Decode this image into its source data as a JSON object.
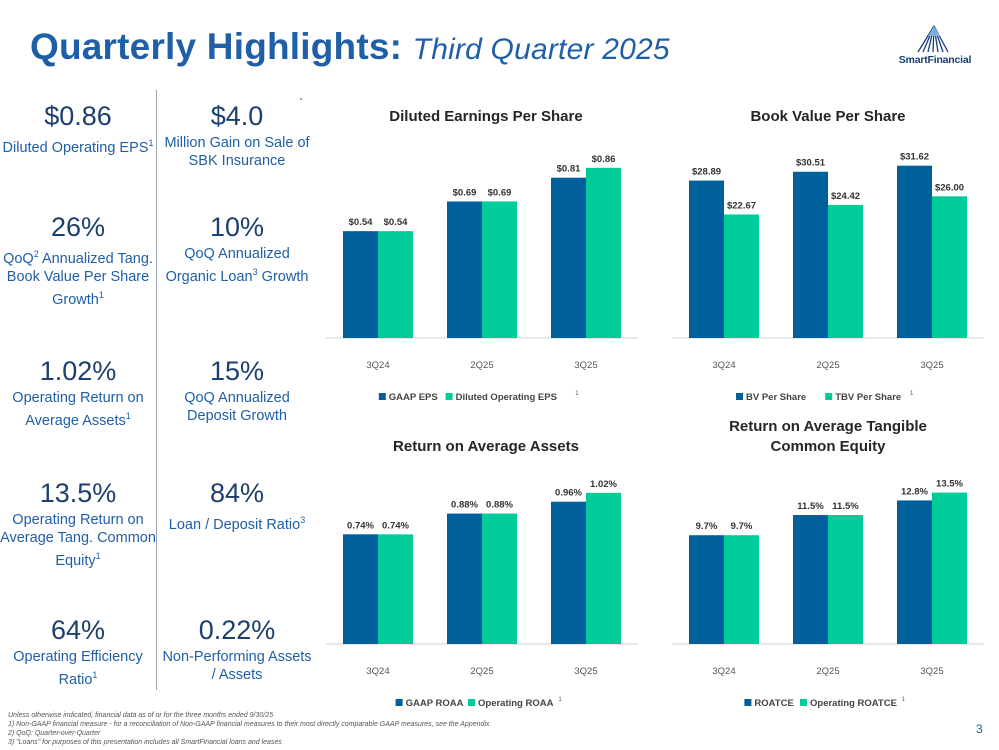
{
  "header": {
    "title_main": "Quarterly Highlights:",
    "title_sub": "Third Quarter 2025",
    "logo_text": "SmartFinancial",
    "page_number": "3"
  },
  "kpis_left": [
    {
      "value": "$0.86",
      "label": "Diluted Operating EPS",
      "note": "1"
    },
    {
      "value": "26%",
      "label": "QoQ Annualized Tang. Book Value Per Share Growth",
      "note": "1",
      "label_prefix": "QoQ",
      "label_prefix_note": "2",
      "label_rest": "Annualized Tang. Book Value Per Share Growth"
    },
    {
      "value": "1.02%",
      "label": "Operating Return on Average Assets",
      "note": "1"
    },
    {
      "value": "13.5%",
      "label": "Operating Return on Average Tang. Common Equity",
      "note": "1"
    },
    {
      "value": "64%",
      "label": "Operating Efficiency Ratio",
      "note": "1"
    }
  ],
  "kpis_right": [
    {
      "value": "$4.0",
      "label": "Million Gain on Sale of SBK Insurance",
      "note": ""
    },
    {
      "value": "10%",
      "label": "QoQ Annualized Organic Loan",
      "note": "3",
      "label_end": "Growth"
    },
    {
      "value": "15%",
      "label": "QoQ Annualized Deposit Growth",
      "note": ""
    },
    {
      "value": "84%",
      "label": "Loan / Deposit Ratio",
      "note": "3"
    },
    {
      "value": "0.22%",
      "label": "Non-Performing Assets / Assets",
      "note": ""
    }
  ],
  "colors": {
    "series1": "#00609c",
    "series2": "#00cc99",
    "brand": "#1f5fa8"
  },
  "chart_data": [
    {
      "type": "bar",
      "title": "Diluted Earnings Per Share",
      "categories": [
        "3Q24",
        "2Q25",
        "3Q25"
      ],
      "series": [
        {
          "name": "GAAP EPS",
          "values": [
            0.54,
            0.69,
            0.81
          ],
          "labels": [
            "$0.54",
            "$0.69",
            "$0.81"
          ]
        },
        {
          "name": "Diluted Operating EPS",
          "values": [
            0.54,
            0.69,
            0.86
          ],
          "labels": [
            "$0.54",
            "$0.69",
            "$0.86"
          ],
          "note": "1"
        }
      ],
      "ylim": [
        0,
        0.95
      ]
    },
    {
      "type": "bar",
      "title": "Book Value Per Share",
      "categories": [
        "3Q24",
        "2Q25",
        "3Q25"
      ],
      "series": [
        {
          "name": "BV Per Share",
          "values": [
            28.89,
            30.51,
            31.62
          ],
          "labels": [
            "$28.89",
            "$30.51",
            "$31.62"
          ]
        },
        {
          "name": "TBV Per Share",
          "values": [
            22.67,
            24.42,
            26.0
          ],
          "labels": [
            "$22.67",
            "$24.42",
            "$26.00"
          ],
          "note": "1"
        }
      ],
      "ylim": [
        0,
        34.5
      ]
    },
    {
      "type": "bar",
      "title": "Return on Average Assets",
      "categories": [
        "3Q24",
        "2Q25",
        "3Q25"
      ],
      "series": [
        {
          "name": "GAAP ROAA",
          "values": [
            0.74,
            0.88,
            0.96
          ],
          "labels": [
            "0.74%",
            "0.88%",
            "0.96%"
          ]
        },
        {
          "name": "Operating ROAA",
          "values": [
            0.74,
            0.88,
            1.02
          ],
          "labels": [
            "0.74%",
            "0.88%",
            "1.02%"
          ],
          "note": "1"
        }
      ],
      "ylim": [
        0,
        1.12
      ]
    },
    {
      "type": "bar",
      "title": "Return on Average Tangible Common Equity",
      "categories": [
        "3Q24",
        "2Q25",
        "3Q25"
      ],
      "series": [
        {
          "name": "ROATCE",
          "values": [
            9.7,
            11.5,
            12.8
          ],
          "labels": [
            "9.7%",
            "11.5%",
            "12.8%"
          ]
        },
        {
          "name": "Operating ROATCE",
          "values": [
            9.7,
            11.5,
            13.5
          ],
          "labels": [
            "9.7%",
            "11.5%",
            "13.5%"
          ],
          "note": "1"
        }
      ],
      "ylim": [
        0,
        14.8
      ]
    }
  ],
  "footnotes": [
    "Unless otherwise indicated, financial data as of or for the three months ended 9/30/25",
    "1)   Non-GAAP financial measure - for a reconciliation of Non-GAAP financial measures to their most directly comparable GAAP measures, see the Appendix",
    "2)   QoQ: Quarter-over-Quarter",
    "3)   \"Loans\" for purposes of this presentation includes all SmartFinancial loans and leases"
  ]
}
